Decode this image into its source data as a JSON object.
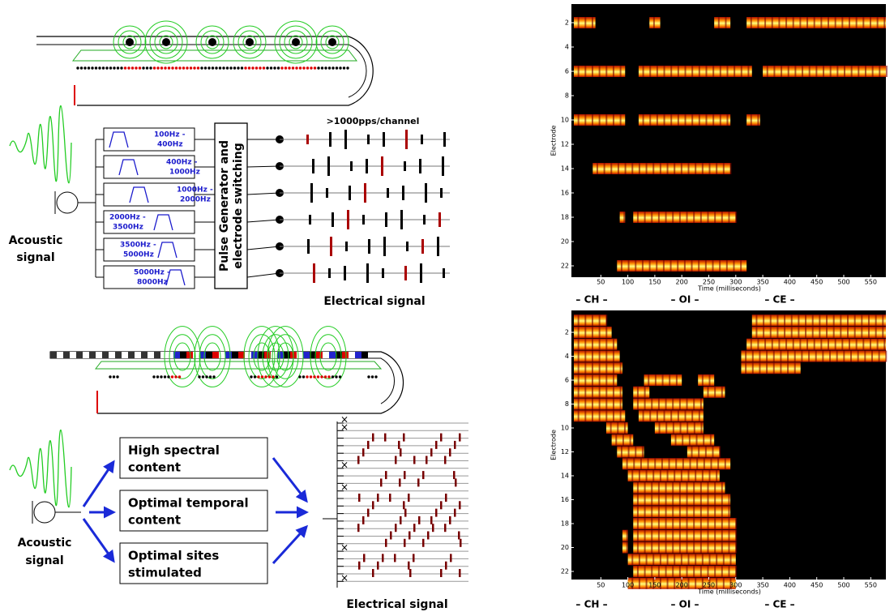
{
  "top_diagram": {
    "rate_label": ">1000pps/channel",
    "filters": [
      [
        "100Hz -",
        "400Hz"
      ],
      [
        "400Hz -",
        "1000Hz"
      ],
      [
        "1000Hz -",
        "2000Hz"
      ],
      [
        "2000Hz -",
        "3500Hz"
      ],
      [
        "3500Hz -",
        "5000Hz"
      ],
      [
        "5000Hz -",
        "8000Hz"
      ]
    ],
    "pulse_generator": [
      "Pulse Generator and",
      "electrode switching"
    ],
    "input_label": [
      "Acoustic",
      "signal"
    ],
    "output_label": "Electrical signal"
  },
  "bottom_diagram": {
    "strategies": [
      [
        "High spectral",
        "content"
      ],
      [
        "Optimal temporal",
        "content"
      ],
      [
        "Optimal sites",
        "stimulated"
      ]
    ],
    "input_label": [
      "Acoustic",
      "signal"
    ],
    "output_label": "Electrical signal"
  },
  "electrodograms": [
    {
      "y_label": "Electrode",
      "x_label": "Time (milliseconds)",
      "yticks": [
        2,
        4,
        6,
        8,
        10,
        12,
        14,
        16,
        18,
        20,
        22
      ],
      "xticks": [
        50,
        100,
        150,
        200,
        250,
        300,
        350,
        400,
        450,
        500,
        550
      ],
      "segments": [
        "– CH –",
        "– OI –",
        "– CE –"
      ]
    },
    {
      "y_label": "Electrode",
      "x_label": "Time (milliseconds)",
      "yticks": [
        2,
        4,
        6,
        8,
        10,
        12,
        14,
        16,
        18,
        20,
        22
      ],
      "xticks": [
        50,
        100,
        150,
        200,
        250,
        300,
        350,
        400,
        450,
        500,
        550
      ],
      "segments": [
        "– CH –",
        "– OI –",
        "– CE –"
      ]
    }
  ]
}
